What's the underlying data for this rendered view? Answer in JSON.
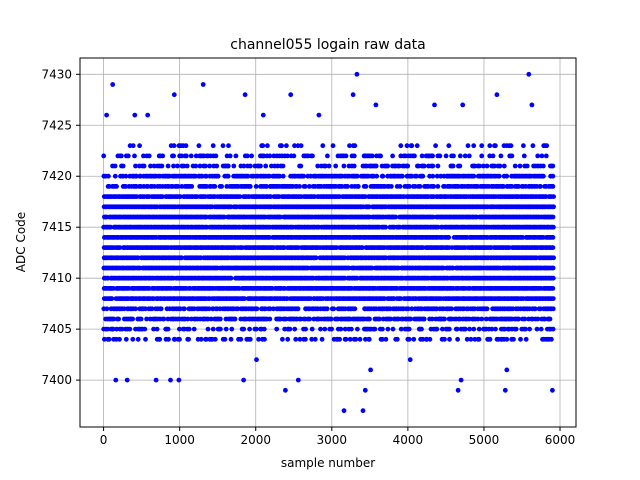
{
  "chart_data": {
    "type": "scatter",
    "title": "channel055 logain raw data",
    "xlabel": "sample number",
    "ylabel": "ADC Code",
    "xlim": [
      -310,
      6210
    ],
    "ylim": [
      7395.4,
      7431.6
    ],
    "x_ticks": [
      0,
      1000,
      2000,
      3000,
      4000,
      5000,
      6000
    ],
    "x_tick_labels": [
      "0",
      "1000",
      "2000",
      "3000",
      "4000",
      "5000",
      "6000"
    ],
    "y_ticks": [
      7400,
      7405,
      7410,
      7415,
      7420,
      7425,
      7430
    ],
    "y_tick_labels": [
      "7400",
      "7405",
      "7410",
      "7415",
      "7420",
      "7425",
      "7430"
    ],
    "grid": true,
    "legend": "none",
    "marker_color": "#0000ff",
    "marker": "circle",
    "x_range": [
      0,
      5920
    ],
    "series": [
      {
        "color": "#0000ff",
        "points": [
          [
            120,
            7429
          ],
          [
            1310,
            7429
          ],
          [
            2460,
            7428
          ],
          [
            930,
            7428
          ],
          [
            1860,
            7428
          ],
          [
            3330,
            7430
          ],
          [
            5590,
            7430
          ],
          [
            3280,
            7428
          ],
          [
            5170,
            7428
          ],
          [
            40,
            7426
          ],
          [
            410,
            7426
          ],
          [
            580,
            7426
          ],
          [
            2100,
            7426
          ],
          [
            2830,
            7426
          ],
          [
            3580,
            7427
          ],
          [
            4350,
            7427
          ],
          [
            4720,
            7427
          ],
          [
            5630,
            7427
          ],
          [
            160,
            7400
          ],
          [
            310,
            7400
          ],
          [
            690,
            7400
          ],
          [
            880,
            7400
          ],
          [
            990,
            7400
          ],
          [
            1840,
            7400
          ],
          [
            2560,
            7400
          ],
          [
            3160,
            7397
          ],
          [
            3410,
            7397
          ],
          [
            3440,
            7399
          ],
          [
            2390,
            7399
          ],
          [
            4660,
            7399
          ],
          [
            5280,
            7399
          ],
          [
            5900,
            7399
          ],
          [
            4700,
            7400
          ],
          [
            5300,
            7401
          ],
          [
            4030,
            7402
          ],
          [
            2010,
            7402
          ],
          [
            3510,
            7401
          ]
        ],
        "dense_band": [
          {
            "x_from": 0,
            "x_to": 5920,
            "y_from": 7404,
            "y_to": 7423
          }
        ],
        "typical_range": [
          7404,
          7423
        ],
        "median_level": 7413
      }
    ]
  }
}
